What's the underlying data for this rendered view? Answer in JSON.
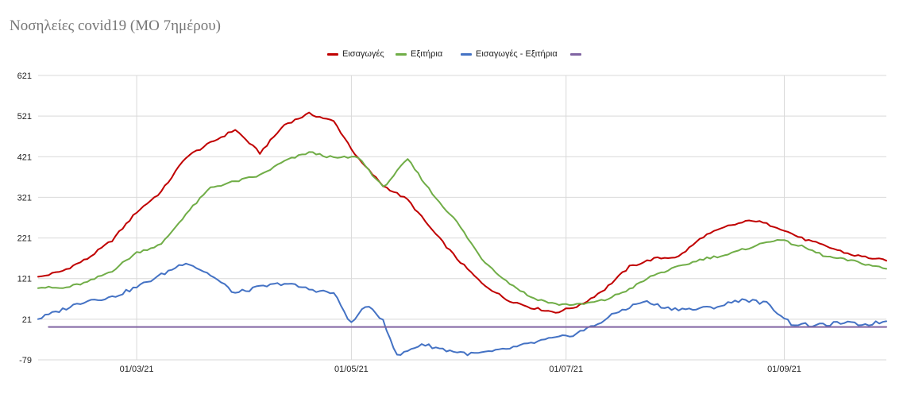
{
  "chart_data": {
    "type": "line",
    "title": "Νοσηλείες covid19 (ΜΟ 7ημέρου)",
    "xlabel": "",
    "ylabel": "",
    "x_start": "2021-02-01",
    "x_end": "2021-09-30",
    "x_ticks": [
      "01/03/21",
      "01/05/21",
      "01/07/21",
      "01/09/21"
    ],
    "y_ticks": [
      "621",
      "521",
      "421",
      "321",
      "221",
      "121",
      "21",
      "-79"
    ],
    "ylim": [
      -79,
      621
    ],
    "grid": true,
    "legend_position": "top",
    "series": [
      {
        "name": "Εισαγωγές",
        "color": "#c00000",
        "points": [
          [
            "2021-02-01",
            124
          ],
          [
            "2021-02-08",
            140
          ],
          [
            "2021-02-15",
            170
          ],
          [
            "2021-02-22",
            215
          ],
          [
            "2021-03-01",
            285
          ],
          [
            "2021-03-08",
            335
          ],
          [
            "2021-03-15",
            420
          ],
          [
            "2021-03-22",
            455
          ],
          [
            "2021-03-29",
            488
          ],
          [
            "2021-04-05",
            430
          ],
          [
            "2021-04-12",
            500
          ],
          [
            "2021-04-19",
            527
          ],
          [
            "2021-04-26",
            508
          ],
          [
            "2021-05-03",
            415
          ],
          [
            "2021-05-10",
            350
          ],
          [
            "2021-05-17",
            315
          ],
          [
            "2021-05-24",
            240
          ],
          [
            "2021-05-31",
            170
          ],
          [
            "2021-06-07",
            110
          ],
          [
            "2021-06-14",
            70
          ],
          [
            "2021-06-21",
            50
          ],
          [
            "2021-06-28",
            38
          ],
          [
            "2021-07-05",
            55
          ],
          [
            "2021-07-12",
            95
          ],
          [
            "2021-07-19",
            150
          ],
          [
            "2021-07-26",
            170
          ],
          [
            "2021-08-02",
            175
          ],
          [
            "2021-08-09",
            225
          ],
          [
            "2021-08-16",
            250
          ],
          [
            "2021-08-23",
            265
          ],
          [
            "2021-08-30",
            248
          ],
          [
            "2021-09-06",
            220
          ],
          [
            "2021-09-13",
            200
          ],
          [
            "2021-09-20",
            180
          ],
          [
            "2021-09-30",
            165
          ]
        ]
      },
      {
        "name": "Εξιτήρια",
        "color": "#70ad47",
        "points": [
          [
            "2021-02-01",
            100
          ],
          [
            "2021-02-08",
            97
          ],
          [
            "2021-02-15",
            112
          ],
          [
            "2021-02-22",
            140
          ],
          [
            "2021-03-01",
            185
          ],
          [
            "2021-03-08",
            205
          ],
          [
            "2021-03-15",
            280
          ],
          [
            "2021-03-22",
            345
          ],
          [
            "2021-03-29",
            360
          ],
          [
            "2021-04-05",
            375
          ],
          [
            "2021-04-12",
            410
          ],
          [
            "2021-04-19",
            432
          ],
          [
            "2021-04-26",
            418
          ],
          [
            "2021-05-03",
            420
          ],
          [
            "2021-05-10",
            345
          ],
          [
            "2021-05-17",
            415
          ],
          [
            "2021-05-24",
            330
          ],
          [
            "2021-05-31",
            260
          ],
          [
            "2021-06-07",
            170
          ],
          [
            "2021-06-14",
            115
          ],
          [
            "2021-06-21",
            75
          ],
          [
            "2021-06-28",
            58
          ],
          [
            "2021-07-05",
            57
          ],
          [
            "2021-07-12",
            68
          ],
          [
            "2021-07-19",
            95
          ],
          [
            "2021-07-26",
            130
          ],
          [
            "2021-08-02",
            150
          ],
          [
            "2021-08-09",
            170
          ],
          [
            "2021-08-16",
            180
          ],
          [
            "2021-08-23",
            200
          ],
          [
            "2021-08-30",
            218
          ],
          [
            "2021-09-06",
            200
          ],
          [
            "2021-09-13",
            175
          ],
          [
            "2021-09-20",
            165
          ],
          [
            "2021-09-30",
            145
          ]
        ]
      },
      {
        "name": "Εισαγωγές - Εξιτήρια",
        "color": "#4472c4",
        "points": [
          [
            "2021-02-01",
            22
          ],
          [
            "2021-02-08",
            45
          ],
          [
            "2021-02-15",
            68
          ],
          [
            "2021-02-22",
            75
          ],
          [
            "2021-03-01",
            100
          ],
          [
            "2021-03-08",
            130
          ],
          [
            "2021-03-15",
            162
          ],
          [
            "2021-03-22",
            130
          ],
          [
            "2021-03-29",
            85
          ],
          [
            "2021-04-05",
            100
          ],
          [
            "2021-04-12",
            110
          ],
          [
            "2021-04-19",
            95
          ],
          [
            "2021-04-26",
            85
          ],
          [
            "2021-05-01",
            10
          ],
          [
            "2021-05-05",
            55
          ],
          [
            "2021-05-10",
            20
          ],
          [
            "2021-05-14",
            -70
          ],
          [
            "2021-05-21",
            -40
          ],
          [
            "2021-05-28",
            -55
          ],
          [
            "2021-06-04",
            -65
          ],
          [
            "2021-06-11",
            -58
          ],
          [
            "2021-06-18",
            -45
          ],
          [
            "2021-06-25",
            -30
          ],
          [
            "2021-07-02",
            -20
          ],
          [
            "2021-07-09",
            5
          ],
          [
            "2021-07-16",
            40
          ],
          [
            "2021-07-23",
            65
          ],
          [
            "2021-07-30",
            48
          ],
          [
            "2021-08-06",
            45
          ],
          [
            "2021-08-13",
            52
          ],
          [
            "2021-08-20",
            70
          ],
          [
            "2021-08-27",
            60
          ],
          [
            "2021-09-03",
            10
          ],
          [
            "2021-09-10",
            5
          ],
          [
            "2021-09-17",
            12
          ],
          [
            "2021-09-24",
            8
          ],
          [
            "2021-09-30",
            16
          ]
        ]
      },
      {
        "name": "",
        "color": "#8064a2",
        "points": [
          [
            "2021-02-04",
            2
          ],
          [
            "2021-09-30",
            2
          ]
        ]
      }
    ]
  }
}
